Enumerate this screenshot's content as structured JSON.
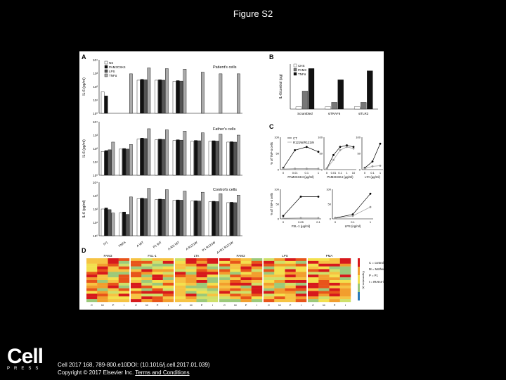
{
  "slide": {
    "title": "Figure S2",
    "citation_line1": "Cell 2017 168, 789-800.e10DOI: (10.1016/j.cell.2017.01.039)",
    "citation_line2_prefix": "Copyright © 2017 Elsevier Inc. ",
    "citation_link": "Terms and Conditions"
  },
  "logo": {
    "word": "Cell",
    "press": "PRESS"
  },
  "figure": {
    "panelA": {
      "label": "A",
      "legend": [
        "NS",
        "PAM3CSK4",
        "LPS",
        "TNFα"
      ],
      "ylabel_top": "IL-6 (pg/ml)",
      "ylabel_mid": "IL-6 (pg/ml)",
      "ylabel_bot": "IL-6 (pg/ml)",
      "ticks": [
        "10⁴",
        "10³",
        "10²",
        "10¹",
        "10⁰"
      ],
      "row_titles": [
        "Patient's cells",
        "Father's cells",
        "Control's cells"
      ],
      "xlabels": [
        "IV1",
        "TNFA",
        "A WT",
        "P1 WT",
        "A-RS WT",
        "A R121W",
        "P1 R121W",
        "A+R1 R121W"
      ]
    },
    "panelB": {
      "label": "B",
      "legend": [
        "CHS",
        "PAM3",
        "TNFα"
      ],
      "ylabel": "IL-6/control (pg)",
      "groups": [
        "Scrambled",
        "siTRAF6",
        "siTLR2"
      ]
    },
    "panelC": {
      "label": "C",
      "legend": [
        "CT",
        "R121W/R121W"
      ],
      "ylabel": "% of TNF-α cells",
      "xlabels": [
        "PAM3CSK4 (μg/ml)",
        "LTA (μg/ml)",
        "FSL-1 (μg/ml)",
        "LPS (ng/ml)"
      ],
      "xticks_a": [
        "0",
        "0.01",
        "0.1",
        "1"
      ],
      "xticks_b": [
        "0",
        "0.1",
        "1",
        "10"
      ],
      "yticks": [
        "100",
        "80",
        "60",
        "40",
        "20",
        "0"
      ]
    },
    "panelD": {
      "label": "D",
      "conditions": [
        "PAM3",
        "FSL-1",
        "LTA",
        "PAM3",
        "LPS",
        "PMA"
      ],
      "columns": [
        "C",
        "M",
        "P",
        "I"
      ],
      "scale_label": "Expression (z)",
      "key": [
        "C = control",
        "M = Mother",
        "P = P1",
        "I = IRAK4-/-"
      ]
    }
  },
  "chart_data": [
    {
      "type": "bar",
      "title": "Patient's cells",
      "categories": [
        "IV1",
        "TNFA",
        "A WT",
        "P1 WT",
        "A-RS WT",
        "A R121W",
        "P1 R121W",
        "A+R1 R121W"
      ],
      "ylabel": "IL-6 (pg/ml)",
      "scale": "log",
      "ylim": [
        1,
        10000
      ],
      "series": [
        {
          "name": "NS",
          "values": [
            40,
            1,
            300,
            300,
            250,
            1,
            1,
            1
          ]
        },
        {
          "name": "PAM3CSK4",
          "values": [
            20,
            1,
            350,
            320,
            280,
            1,
            1,
            1
          ]
        },
        {
          "name": "LPS",
          "values": [
            1,
            1,
            320,
            300,
            260,
            1,
            1,
            1
          ]
        },
        {
          "name": "TNFα",
          "values": [
            1,
            900,
            2500,
            2200,
            2000,
            1200,
            900,
            900
          ]
        }
      ]
    },
    {
      "type": "bar",
      "title": "Father's cells",
      "categories": [
        "IV1",
        "TNFA",
        "A WT",
        "P1 WT",
        "A-RS WT",
        "A R121W",
        "P1 R121W",
        "A+R1 R121W"
      ],
      "ylabel": "IL-6 (pg/ml)",
      "scale": "log",
      "ylim": [
        1,
        10000
      ],
      "series": [
        {
          "name": "NS",
          "values": [
            60,
            90,
            500,
            450,
            400,
            350,
            350,
            300
          ]
        },
        {
          "name": "PAM3CSK4",
          "values": [
            70,
            100,
            600,
            500,
            450,
            400,
            380,
            320
          ]
        },
        {
          "name": "LPS",
          "values": [
            80,
            90,
            550,
            480,
            420,
            380,
            360,
            300
          ]
        },
        {
          "name": "TNFα",
          "values": [
            300,
            200,
            3000,
            2500,
            2000,
            1500,
            1200,
            1000
          ]
        }
      ]
    },
    {
      "type": "bar",
      "title": "Control's cells",
      "categories": [
        "IV1",
        "TNFA",
        "A WT",
        "P1 WT",
        "A-RS WT",
        "A R121W",
        "P1 R121W",
        "A+R1 R121W"
      ],
      "ylabel": "IL-6 (pg/ml)",
      "scale": "log",
      "ylim": [
        1,
        10000
      ],
      "series": [
        {
          "name": "NS",
          "values": [
            100,
            50,
            600,
            500,
            450,
            400,
            350,
            300
          ]
        },
        {
          "name": "PAM3CSK4",
          "values": [
            120,
            60,
            650,
            550,
            480,
            420,
            380,
            320
          ]
        },
        {
          "name": "LPS",
          "values": [
            90,
            40,
            600,
            520,
            460,
            400,
            360,
            300
          ]
        },
        {
          "name": "TNFα",
          "values": [
            50,
            800,
            3500,
            2800,
            2200,
            1800,
            1400,
            1100
          ]
        }
      ]
    },
    {
      "type": "bar",
      "categories": [
        "Scrambled",
        "siTRAF6",
        "siTLR2"
      ],
      "ylabel": "IL-6/control (pg)",
      "ylim": [
        0,
        20
      ],
      "series": [
        {
          "name": "CHS",
          "values": [
            1,
            1,
            1
          ]
        },
        {
          "name": "PAM3",
          "values": [
            8,
            3,
            3
          ]
        },
        {
          "name": "TNFα",
          "values": [
            18,
            13,
            17
          ]
        }
      ]
    },
    {
      "type": "line",
      "xlabel": "PAM3CSK4 (μg/ml)",
      "ylabel": "% of TNF-α cells",
      "x": [
        "0",
        "0.01",
        "0.1",
        "1"
      ],
      "ylim": [
        0,
        100
      ],
      "series": [
        {
          "name": "CT",
          "values": [
            5,
            60,
            70,
            55
          ]
        },
        {
          "name": "R121W/R121W",
          "values": [
            2,
            3,
            3,
            3
          ]
        }
      ]
    },
    {
      "type": "line",
      "xlabel": "PAM3CSK4 (μg/ml)",
      "ylabel": "",
      "x": [
        "0",
        "0.01",
        "0.1",
        "1",
        "10"
      ],
      "ylim": [
        0,
        100
      ],
      "series": [
        {
          "name": "CT",
          "values": [
            3,
            45,
            70,
            75,
            70
          ]
        },
        {
          "name": "R121W/R121W",
          "values": [
            2,
            30,
            60,
            70,
            65
          ]
        }
      ]
    },
    {
      "type": "line",
      "xlabel": "LTA (μg/ml)",
      "ylabel": "",
      "x": [
        "0",
        "0.1",
        "1"
      ],
      "ylim": [
        0,
        100
      ],
      "series": [
        {
          "name": "CT",
          "values": [
            5,
            25,
            80
          ]
        },
        {
          "name": "R121W/R121W",
          "values": [
            3,
            10,
            12
          ]
        }
      ]
    },
    {
      "type": "line",
      "xlabel": "FSL-1 (μg/ml)",
      "ylabel": "% of TNF-α cells",
      "x": [
        "0",
        "0.05",
        "0.1"
      ],
      "ylim": [
        0,
        100
      ],
      "series": [
        {
          "name": "CT",
          "values": [
            10,
            75,
            75
          ]
        },
        {
          "name": "R121W/R121W",
          "values": [
            2,
            3,
            3
          ]
        }
      ]
    },
    {
      "type": "line",
      "xlabel": "LPS (ng/ml)",
      "ylabel": "",
      "x": [
        "0",
        "0.1",
        "1"
      ],
      "ylim": [
        0,
        100
      ],
      "series": [
        {
          "name": "CT",
          "values": [
            3,
            15,
            85
          ]
        },
        {
          "name": "R121W/R121W",
          "values": [
            2,
            10,
            40
          ]
        }
      ]
    }
  ]
}
